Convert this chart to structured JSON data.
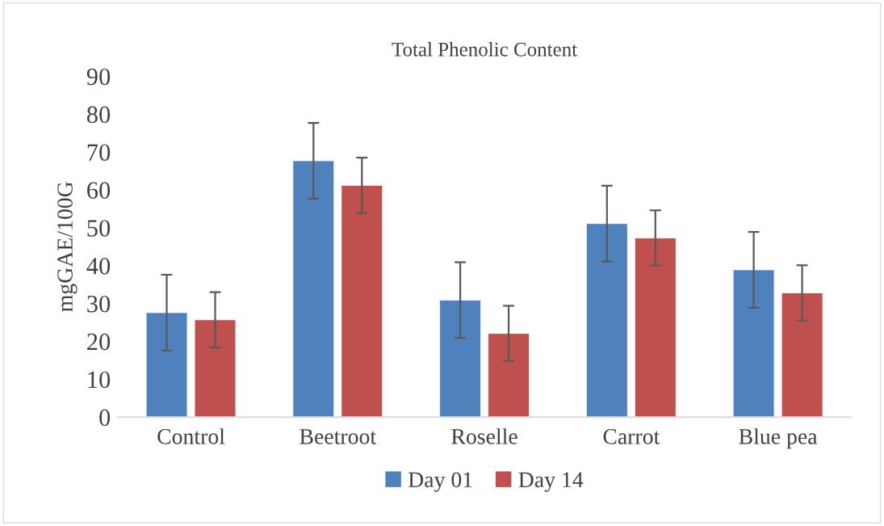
{
  "chart_data": {
    "type": "bar",
    "title": "Total Phenolic Content",
    "ylabel": "mgGAE/100G",
    "categories": [
      "Control",
      "Beetroot",
      "Roselle",
      "Carrot",
      "Blue pea"
    ],
    "series": [
      {
        "name": "Day 01",
        "color": "#4f81bd",
        "values": [
          27.6,
          67.7,
          30.9,
          51.1,
          38.9
        ],
        "errors": [
          10,
          10,
          10,
          10,
          10
        ]
      },
      {
        "name": "Day 14",
        "color": "#c0504d",
        "values": [
          25.7,
          61.2,
          22.1,
          47.3,
          32.8
        ],
        "errors": [
          7.3,
          7.3,
          7.3,
          7.3,
          7.3
        ]
      }
    ],
    "ylim": [
      0,
      90
    ],
    "yticks": [
      0,
      10,
      20,
      30,
      40,
      50,
      60,
      70,
      80,
      90
    ],
    "grid": false,
    "legend": "bottom"
  }
}
